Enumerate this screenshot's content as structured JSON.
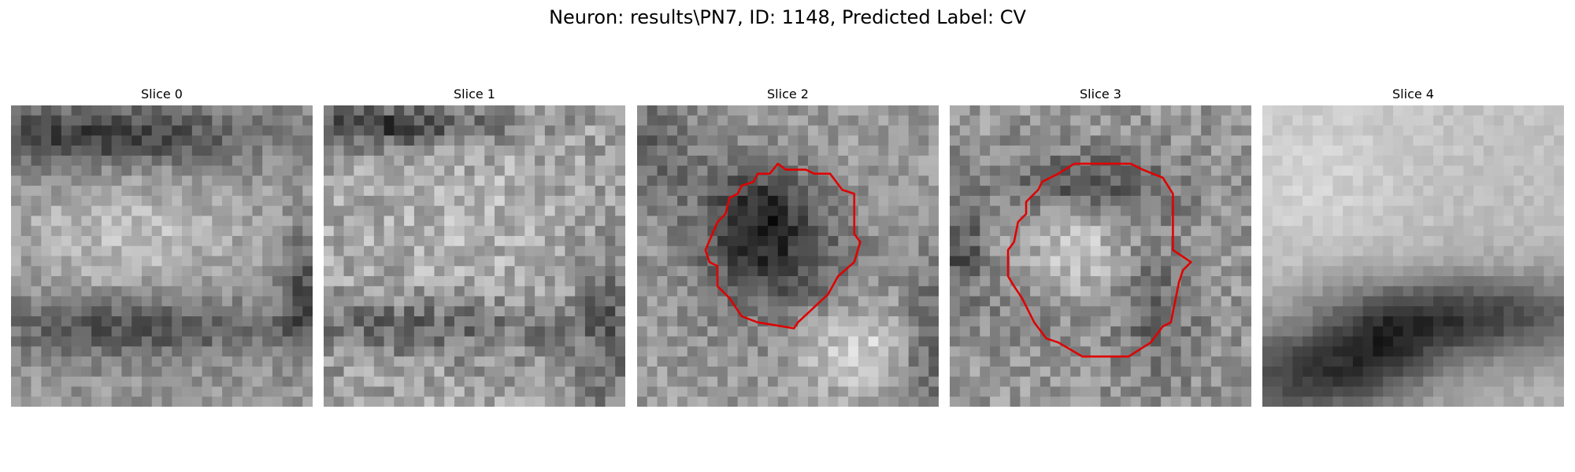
{
  "figure": {
    "title": "Neuron: results\\PN7, ID: 1148, Predicted Label: CV"
  },
  "panels": [
    {
      "title": "Slice 0",
      "contour": false
    },
    {
      "title": "Slice 1",
      "contour": false
    },
    {
      "title": "Slice 2",
      "contour": true
    },
    {
      "title": "Slice 3",
      "contour": true
    },
    {
      "title": "Slice 4",
      "contour": false
    }
  ],
  "style": {
    "contour_color": "#e00000",
    "colormap": "grayscale"
  }
}
